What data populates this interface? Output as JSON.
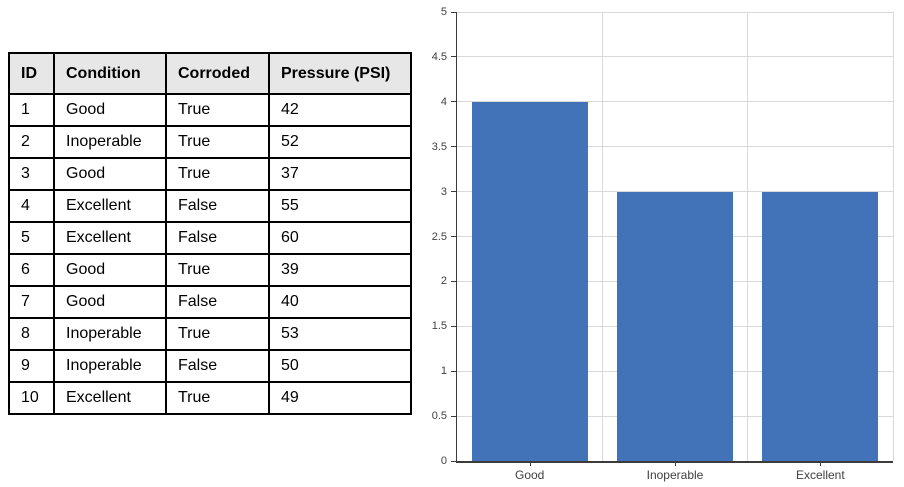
{
  "table": {
    "columns": [
      "ID",
      "Condition",
      "Corroded",
      "Pressure (PSI)"
    ],
    "rows": [
      [
        "1",
        "Good",
        "True",
        "42"
      ],
      [
        "2",
        "Inoperable",
        "True",
        "52"
      ],
      [
        "3",
        "Good",
        "True",
        "37"
      ],
      [
        "4",
        "Excellent",
        "False",
        "55"
      ],
      [
        "5",
        "Excellent",
        "False",
        "60"
      ],
      [
        "6",
        "Good",
        "True",
        "39"
      ],
      [
        "7",
        "Good",
        "False",
        "40"
      ],
      [
        "8",
        "Inoperable",
        "True",
        "53"
      ],
      [
        "9",
        "Inoperable",
        "False",
        "50"
      ],
      [
        "10",
        "Excellent",
        "True",
        "49"
      ]
    ],
    "header_bg": "#E7E7E7",
    "border_color": "#000000",
    "text_color": "#000000"
  },
  "chart_data": {
    "type": "bar",
    "categories": [
      "Good",
      "Inoperable",
      "Excellent"
    ],
    "values": [
      4,
      3,
      3
    ],
    "title": "",
    "xlabel": "",
    "ylabel": "",
    "ylim": [
      0,
      5
    ],
    "ytick_step": 0.5,
    "ytick_labels": [
      "0",
      "0.5",
      "1",
      "1.5",
      "2",
      "2.5",
      "3",
      "3.5",
      "4",
      "4.5",
      "5"
    ],
    "grid": true,
    "legend": "none",
    "bar_color": "#4272B8",
    "gridline_color": "#D9D9D9",
    "axis_color": "#3B3B3B",
    "label_color": "#404040"
  }
}
